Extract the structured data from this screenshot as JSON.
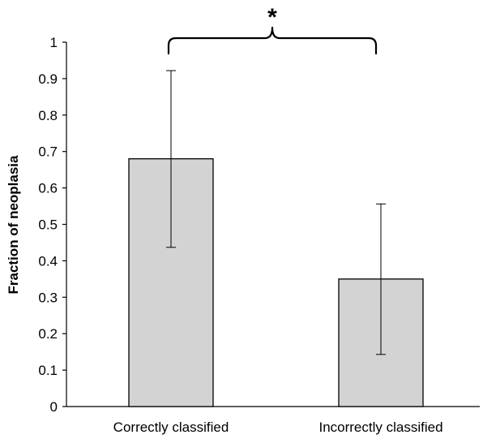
{
  "chart_data": {
    "type": "bar",
    "title": "",
    "xlabel": "",
    "ylabel": "Fraction of neoplasia",
    "ylim": [
      0,
      1
    ],
    "yticks": [
      "0",
      "0.1",
      "0.2",
      "0.3",
      "0.4",
      "0.5",
      "0.6",
      "0.7",
      "0.8",
      "0.9",
      "1"
    ],
    "categories": [
      "Correctly classified",
      "Incorrectly classified"
    ],
    "values": [
      0.68,
      0.35
    ],
    "error_bars": [
      {
        "lower": 0.437,
        "upper": 0.922
      },
      {
        "lower": 0.143,
        "upper": 0.556
      }
    ],
    "significance": {
      "between": [
        0,
        1
      ],
      "label": "*"
    },
    "grid": false,
    "legend": "none",
    "bar_color": "#d3d3d3",
    "bar_edge_color": "#000000"
  }
}
